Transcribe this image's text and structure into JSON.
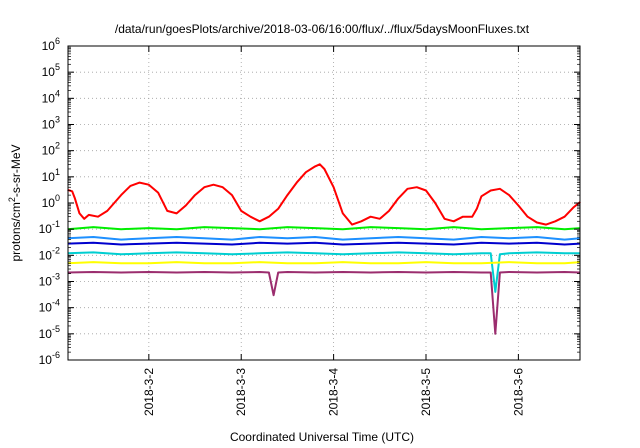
{
  "chart_data": {
    "type": "line",
    "title": "/data/run/goesPlots/archive/2018-03-06/16:00/flux/../flux/5daysMoonFluxes.txt",
    "xlabel": "Coordinated Universal Time (UTC)",
    "ylabel": "protons/cm²-s-sr-MeV",
    "y_scale": "log",
    "ylim": [
      1e-06,
      1000000.0
    ],
    "y_tick_exponents": [
      -6,
      -5,
      -4,
      -3,
      -2,
      -1,
      0,
      1,
      2,
      3,
      4,
      5,
      6
    ],
    "x_range_days": [
      "2018-03-01 03:00",
      "2018-03-06 16:00"
    ],
    "x_ticks": [
      "2018-3-2",
      "2018-3-3",
      "2018-3-4",
      "2018-3-5",
      "2018-3-6"
    ],
    "grid": true,
    "legend": "none",
    "series": [
      {
        "color": "#ff0000",
        "x": [
          1.12,
          1.17,
          1.2,
          1.25,
          1.3,
          1.35,
          1.45,
          1.55,
          1.7,
          1.8,
          1.9,
          2.0,
          2.1,
          2.2,
          2.3,
          2.4,
          2.5,
          2.6,
          2.7,
          2.8,
          2.9,
          3.0,
          3.1,
          3.2,
          3.3,
          3.4,
          3.5,
          3.6,
          3.7,
          3.8,
          3.85,
          3.9,
          4.0,
          4.1,
          4.2,
          4.3,
          4.4,
          4.5,
          4.6,
          4.7,
          4.8,
          4.9,
          5.0,
          5.1,
          5.2,
          5.3,
          5.4,
          5.5,
          5.55,
          5.6,
          5.7,
          5.8,
          5.9,
          6.0,
          6.1,
          6.2,
          6.3,
          6.4,
          6.5,
          6.6,
          6.67
        ],
        "y": [
          3.2,
          2.8,
          1.5,
          0.4,
          0.25,
          0.35,
          0.3,
          0.5,
          2.0,
          4.5,
          6.0,
          5.0,
          2.5,
          0.5,
          0.4,
          0.8,
          2.0,
          4.0,
          5.0,
          4.0,
          2.0,
          0.5,
          0.3,
          0.2,
          0.3,
          0.6,
          2.0,
          6.0,
          15.0,
          25.0,
          30.0,
          20.0,
          4.0,
          0.4,
          0.15,
          0.2,
          0.3,
          0.25,
          0.5,
          1.5,
          3.5,
          4.0,
          3.0,
          1.0,
          0.25,
          0.2,
          0.3,
          0.3,
          0.6,
          1.8,
          3.0,
          3.5,
          2.0,
          0.8,
          0.3,
          0.18,
          0.15,
          0.2,
          0.3,
          0.7,
          1.1
        ]
      },
      {
        "color": "#00ee00",
        "x": [
          1.12,
          1.4,
          1.7,
          2.0,
          2.3,
          2.6,
          2.9,
          3.2,
          3.5,
          3.8,
          4.1,
          4.4,
          4.7,
          5.0,
          5.3,
          5.6,
          5.9,
          6.2,
          6.5,
          6.67
        ],
        "y": [
          0.1,
          0.12,
          0.1,
          0.11,
          0.1,
          0.12,
          0.11,
          0.1,
          0.12,
          0.11,
          0.1,
          0.12,
          0.11,
          0.1,
          0.12,
          0.1,
          0.11,
          0.12,
          0.1,
          0.11
        ]
      },
      {
        "color": "#1e90ff",
        "x": [
          1.12,
          1.4,
          1.7,
          2.0,
          2.3,
          2.6,
          2.9,
          3.2,
          3.5,
          3.8,
          4.1,
          4.4,
          4.7,
          5.0,
          5.3,
          5.6,
          5.9,
          6.2,
          6.5,
          6.67
        ],
        "y": [
          0.045,
          0.05,
          0.04,
          0.045,
          0.05,
          0.045,
          0.04,
          0.05,
          0.045,
          0.05,
          0.04,
          0.045,
          0.05,
          0.045,
          0.04,
          0.05,
          0.045,
          0.05,
          0.04,
          0.045
        ]
      },
      {
        "color": "#0000cd",
        "x": [
          1.12,
          1.4,
          1.7,
          2.0,
          2.3,
          2.6,
          2.9,
          3.2,
          3.5,
          3.8,
          4.1,
          4.4,
          4.7,
          5.0,
          5.3,
          5.6,
          5.9,
          6.2,
          6.5,
          6.67
        ],
        "y": [
          0.028,
          0.03,
          0.026,
          0.028,
          0.03,
          0.028,
          0.026,
          0.03,
          0.028,
          0.03,
          0.026,
          0.028,
          0.03,
          0.028,
          0.026,
          0.03,
          0.028,
          0.03,
          0.026,
          0.028
        ]
      },
      {
        "color": "#00ced1",
        "x": [
          1.12,
          1.4,
          1.7,
          2.0,
          2.3,
          2.6,
          2.9,
          3.2,
          3.5,
          3.8,
          4.1,
          4.4,
          4.7,
          5.0,
          5.3,
          5.6,
          5.7,
          5.75,
          5.8,
          5.9,
          6.2,
          6.5,
          6.67
        ],
        "y": [
          0.012,
          0.013,
          0.011,
          0.012,
          0.013,
          0.012,
          0.011,
          0.012,
          0.013,
          0.012,
          0.011,
          0.012,
          0.013,
          0.012,
          0.011,
          0.012,
          0.012,
          0.0004,
          0.011,
          0.012,
          0.013,
          0.012,
          0.012
        ]
      },
      {
        "color": "#ffff00",
        "x": [
          1.12,
          1.4,
          1.7,
          2.0,
          2.3,
          2.6,
          2.9,
          3.2,
          3.5,
          3.8,
          4.1,
          4.4,
          4.7,
          5.0,
          5.3,
          5.6,
          5.9,
          6.2,
          6.5,
          6.67
        ],
        "y": [
          0.005,
          0.0055,
          0.005,
          0.005,
          0.0055,
          0.005,
          0.005,
          0.0055,
          0.005,
          0.005,
          0.0055,
          0.005,
          0.005,
          0.0055,
          0.005,
          0.005,
          0.0055,
          0.005,
          0.005,
          0.0055
        ]
      },
      {
        "color": "#9b2d6e",
        "x": [
          1.12,
          1.4,
          1.7,
          2.0,
          2.3,
          2.6,
          2.9,
          3.2,
          3.3,
          3.35,
          3.4,
          3.5,
          3.8,
          4.1,
          4.4,
          4.7,
          5.0,
          5.3,
          5.6,
          5.7,
          5.75,
          5.8,
          5.9,
          6.2,
          6.5,
          6.67
        ],
        "y": [
          0.0022,
          0.0023,
          0.0022,
          0.0023,
          0.0022,
          0.0023,
          0.0022,
          0.0023,
          0.0022,
          0.0003,
          0.0022,
          0.0023,
          0.0022,
          0.0023,
          0.0022,
          0.0023,
          0.0022,
          0.0023,
          0.0022,
          0.0022,
          1e-05,
          0.0022,
          0.0023,
          0.0022,
          0.0023,
          0.0022
        ]
      }
    ]
  }
}
